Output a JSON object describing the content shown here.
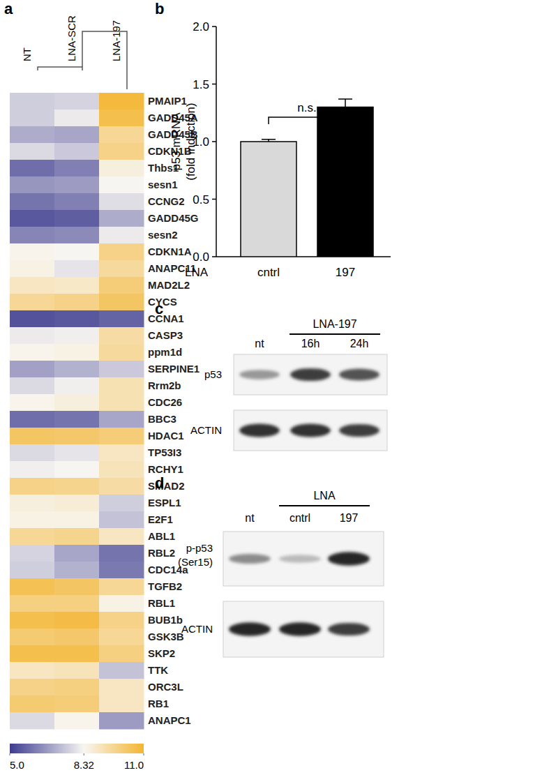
{
  "chart_data": [
    {
      "type": "heatmap",
      "panel": "a",
      "columns": [
        "NT",
        "LNA-SCR",
        "LNA-197"
      ],
      "rows": [
        "PMAIP1",
        "GADD45A",
        "GADD45B",
        "CDKN1B",
        "Thbs1",
        "sesn1",
        "CCNG2",
        "GADD45G",
        "sesn2",
        "CDKN1A",
        "ANAPC11",
        "MAD2L2",
        "CYCS",
        "CCNA1",
        "CASP3",
        "ppm1d",
        "SERPINE1",
        "Rrm2b",
        "CDC26",
        "BBC3",
        "HDAC1",
        "TP53I3",
        "RCHY1",
        "SMAD2",
        "ESPL1",
        "E2F1",
        "ABL1",
        "RBL2",
        "CDC14a",
        "TGFB2",
        "RBL1",
        "BUB1b",
        "GSK3B",
        "SKP2",
        "TTK",
        "ORC3L",
        "RB1",
        "ANAPC1"
      ],
      "values": [
        [
          7.6,
          7.7,
          10.8
        ],
        [
          7.6,
          8.1,
          10.6
        ],
        [
          7.0,
          6.9,
          9.6
        ],
        [
          7.8,
          7.5,
          9.8
        ],
        [
          5.9,
          6.2,
          8.6
        ],
        [
          6.6,
          6.7,
          8.3
        ],
        [
          6.0,
          6.2,
          7.9
        ],
        [
          5.5,
          5.6,
          7.0
        ],
        [
          6.3,
          6.4,
          8.1
        ],
        [
          8.4,
          8.3,
          9.8
        ],
        [
          8.5,
          8.0,
          9.5
        ],
        [
          9.0,
          8.9,
          10.0
        ],
        [
          9.6,
          9.8,
          10.3
        ],
        [
          5.4,
          5.5,
          5.7
        ],
        [
          8.1,
          8.2,
          9.4
        ],
        [
          8.4,
          8.5,
          9.5
        ],
        [
          6.8,
          7.1,
          7.5
        ],
        [
          7.8,
          8.2,
          9.2
        ],
        [
          8.4,
          8.6,
          9.2
        ],
        [
          5.9,
          6.0,
          6.9
        ],
        [
          10.3,
          10.2,
          10.0
        ],
        [
          7.8,
          8.0,
          9.0
        ],
        [
          8.2,
          8.3,
          9.1
        ],
        [
          9.8,
          9.7,
          9.4
        ],
        [
          8.6,
          8.7,
          7.6
        ],
        [
          8.5,
          8.5,
          7.4
        ],
        [
          9.6,
          9.7,
          9.0
        ],
        [
          7.7,
          6.9,
          6.0
        ],
        [
          7.6,
          7.1,
          6.1
        ],
        [
          10.5,
          10.3,
          9.6
        ],
        [
          9.9,
          9.9,
          8.5
        ],
        [
          10.6,
          10.7,
          9.8
        ],
        [
          10.1,
          10.2,
          9.6
        ],
        [
          10.6,
          10.6,
          9.9
        ],
        [
          9.0,
          9.1,
          7.4
        ],
        [
          9.8,
          9.9,
          9.0
        ],
        [
          10.1,
          10.0,
          9.0
        ],
        [
          7.8,
          8.4,
          6.7
        ]
      ],
      "colorbar": {
        "range": [
          5,
          11
        ],
        "ticks": [
          {
            "value": 5,
            "label": "5.0"
          },
          8.32,
          {
            "value": 11,
            "label": "11.0"
          }
        ]
      }
    },
    {
      "type": "bar",
      "panel": "b",
      "categories": [
        "cntrl",
        "197"
      ],
      "values": [
        1.0,
        1.3
      ],
      "errors": [
        0.02,
        0.07
      ],
      "colors": [
        "#d9d9d9",
        "#000000"
      ],
      "x_label": "LNA",
      "y_label": [
        "p53 mRNA",
        "(fold induction)"
      ],
      "ylim": [
        0,
        2
      ],
      "yticks": [
        {
          "value": 0,
          "label": "0.0"
        },
        {
          "value": 0.5,
          "label": "0.5"
        },
        {
          "value": 1,
          "label": "1.0"
        },
        {
          "value": 1.5,
          "label": "1.5"
        },
        {
          "value": 2,
          "label": "2.0"
        }
      ],
      "annotations": [
        {
          "text": "n.s."
        }
      ]
    },
    {
      "type": "blot",
      "panel": "c",
      "header": "LNA-197",
      "lanes": [
        "nt",
        "16h",
        "24h"
      ],
      "bands": [
        {
          "name": "p53",
          "values": [
            0.45,
            0.85,
            0.75
          ]
        },
        {
          "name": "ACTIN",
          "values": [
            0.9,
            0.9,
            0.85
          ]
        }
      ]
    },
    {
      "type": "blot",
      "panel": "d",
      "header": "LNA",
      "lanes": [
        "nt",
        "cntrl",
        "197"
      ],
      "bands": [
        {
          "name": "p-p53 (Ser15)",
          "lines": [
            "p-p53",
            "(Ser15)"
          ],
          "values": [
            0.5,
            0.3,
            0.95
          ]
        },
        {
          "name": "ACTIN",
          "values": [
            0.95,
            0.95,
            0.85
          ]
        }
      ]
    }
  ]
}
